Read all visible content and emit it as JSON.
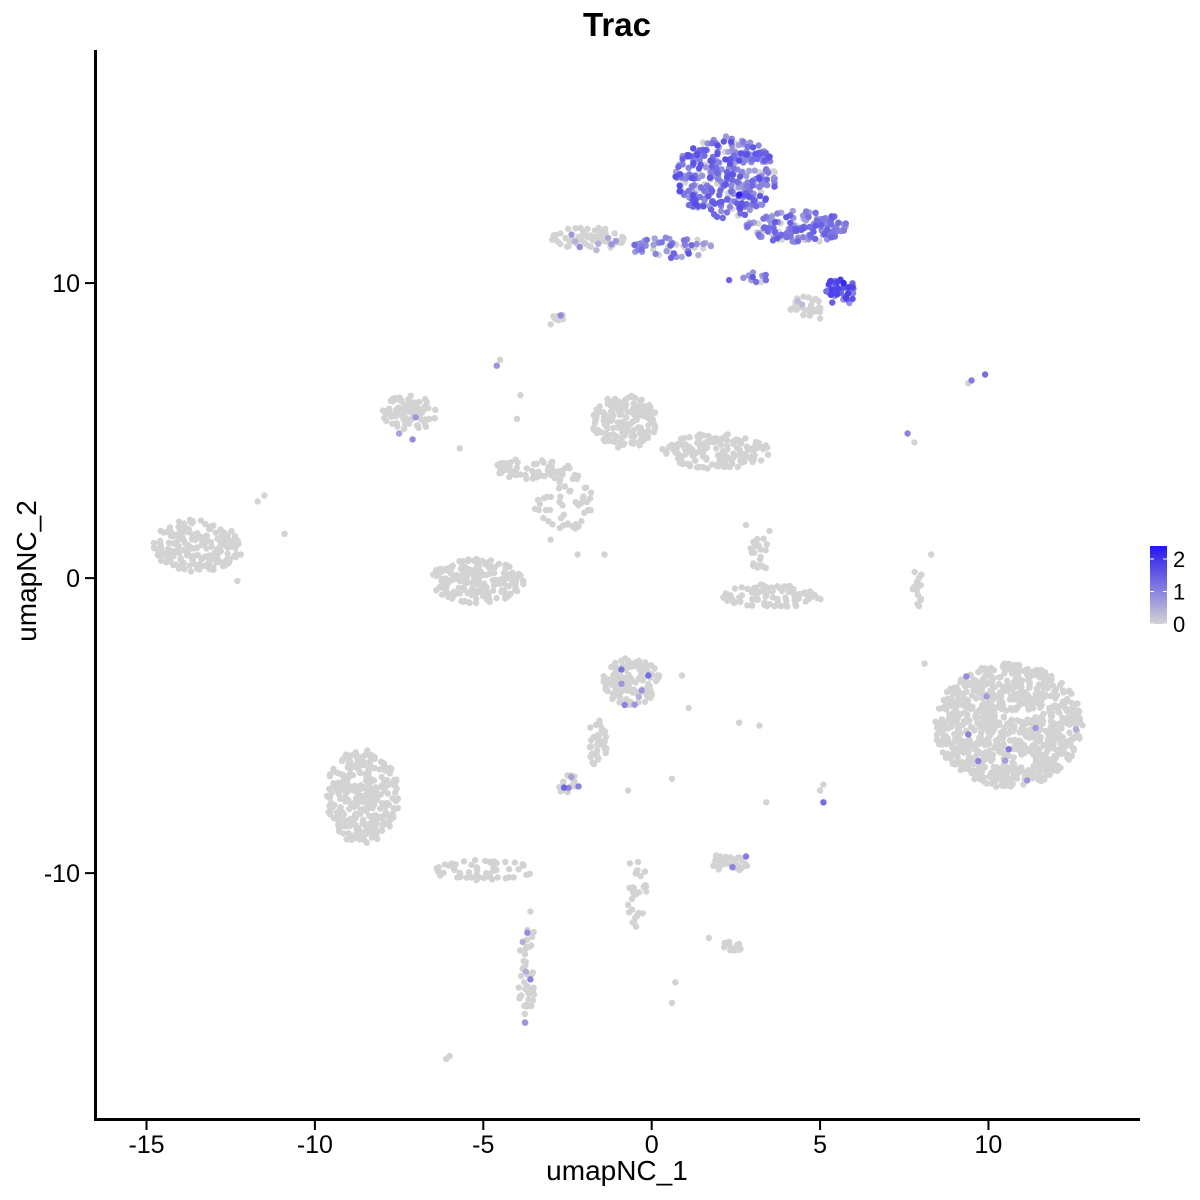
{
  "chart_data": {
    "type": "scatter",
    "title": "Trac",
    "xlabel": "umapNC_1",
    "ylabel": "umapNC_2",
    "xlim": [
      -16.5,
      14.5
    ],
    "ylim": [
      -18.3,
      17.9
    ],
    "x_ticks": [
      -15,
      -10,
      -5,
      0,
      5,
      10
    ],
    "x_tick_labels": [
      "-15",
      "-10",
      "-5",
      "0",
      "5",
      "10"
    ],
    "y_ticks": [
      -10,
      0,
      10
    ],
    "y_tick_labels": [
      "-10",
      "0",
      "10"
    ],
    "grid": false,
    "legend": {
      "placement": "right",
      "type": "colorbar",
      "range": [
        0,
        2.4
      ],
      "ticks": [
        0,
        1,
        2
      ],
      "tick_labels": [
        "0",
        "1",
        "2"
      ],
      "color_low": "#d3d3d3",
      "color_high": "#2416f0"
    },
    "clusters": [
      {
        "id": "tcell-top",
        "cx": 2.2,
        "cy": 13.6,
        "rx": 1.5,
        "ry": 1.4,
        "n": 320,
        "expr_mean": 1.15,
        "expr_spread": 0.55,
        "expr_frac": 0.9
      },
      {
        "id": "tcell-right-arm",
        "cx": 4.3,
        "cy": 11.9,
        "rx": 1.5,
        "ry": 0.55,
        "n": 140,
        "expr_mean": 1.05,
        "expr_spread": 0.5,
        "expr_frac": 0.8
      },
      {
        "id": "tcell-lower-right",
        "cx": 5.6,
        "cy": 9.7,
        "rx": 0.5,
        "ry": 0.45,
        "n": 45,
        "expr_mean": 1.3,
        "expr_spread": 0.6,
        "expr_frac": 0.85
      },
      {
        "id": "tcell-left-arm",
        "cx": 0.6,
        "cy": 11.2,
        "rx": 1.2,
        "ry": 0.35,
        "n": 55,
        "expr_mean": 0.95,
        "expr_spread": 0.5,
        "expr_frac": 0.6
      },
      {
        "id": "tcell-small-spur",
        "cx": 3.1,
        "cy": 10.2,
        "rx": 0.4,
        "ry": 0.25,
        "n": 12,
        "expr_mean": 1.0,
        "expr_spread": 0.4,
        "expr_frac": 0.7
      },
      {
        "id": "tcell-grey-tail",
        "cx": 4.6,
        "cy": 9.2,
        "rx": 0.5,
        "ry": 0.35,
        "n": 30,
        "expr_mean": 0.4,
        "expr_spread": 0.3,
        "expr_frac": 0.15
      },
      {
        "id": "upper-left-cloud",
        "cx": -1.9,
        "cy": 11.5,
        "rx": 1.1,
        "ry": 0.4,
        "n": 70,
        "expr_mean": 0.6,
        "expr_spread": 0.3,
        "expr_frac": 0.06
      },
      {
        "id": "upper-small-1",
        "cx": -2.8,
        "cy": 8.8,
        "rx": 0.25,
        "ry": 0.15,
        "n": 10,
        "expr_mean": 0.5,
        "expr_spread": 0.2,
        "expr_frac": 0.1
      },
      {
        "id": "left-mid-top",
        "cx": -7.2,
        "cy": 5.6,
        "rx": 0.8,
        "ry": 0.6,
        "n": 90,
        "expr_mean": 0.6,
        "expr_spread": 0.3,
        "expr_frac": 0.02
      },
      {
        "id": "mid-top-blob",
        "cx": -0.8,
        "cy": 5.3,
        "rx": 1.0,
        "ry": 0.9,
        "n": 170,
        "expr_mean": 0.5,
        "expr_spread": 0.3,
        "expr_frac": 0.0
      },
      {
        "id": "mid-right-blob",
        "cx": 1.9,
        "cy": 4.3,
        "rx": 1.6,
        "ry": 0.6,
        "n": 150,
        "expr_mean": 0.5,
        "expr_spread": 0.3,
        "expr_frac": 0.0
      },
      {
        "id": "mid-band",
        "cx": -3.6,
        "cy": 3.7,
        "rx": 1.2,
        "ry": 0.35,
        "n": 60,
        "expr_mean": 0.5,
        "expr_spread": 0.3,
        "expr_frac": 0.0
      },
      {
        "id": "mid-scatter",
        "cx": -2.6,
        "cy": 2.6,
        "rx": 0.9,
        "ry": 1.0,
        "n": 55,
        "expr_mean": 0.5,
        "expr_spread": 0.3,
        "expr_frac": 0.0
      },
      {
        "id": "far-left-blob",
        "cx": -13.5,
        "cy": 1.1,
        "rx": 1.3,
        "ry": 0.9,
        "n": 200,
        "expr_mean": 0.5,
        "expr_spread": 0.3,
        "expr_frac": 0.0
      },
      {
        "id": "cup-blob",
        "cx": -5.2,
        "cy": -0.1,
        "rx": 1.4,
        "ry": 0.75,
        "n": 190,
        "expr_mean": 0.5,
        "expr_spread": 0.3,
        "expr_frac": 0.0
      },
      {
        "id": "mid-right-arc",
        "cx": 3.6,
        "cy": -0.6,
        "rx": 1.5,
        "ry": 0.4,
        "n": 85,
        "expr_mean": 0.5,
        "expr_spread": 0.3,
        "expr_frac": 0.0
      },
      {
        "id": "mid-right-column",
        "cx": 3.2,
        "cy": 0.8,
        "rx": 0.3,
        "ry": 0.6,
        "n": 22,
        "expr_mean": 0.5,
        "expr_spread": 0.3,
        "expr_frac": 0.0
      },
      {
        "id": "right-big-blob",
        "cx": 10.6,
        "cy": -5.0,
        "rx": 2.2,
        "ry": 2.1,
        "n": 900,
        "expr_mean": 0.6,
        "expr_spread": 0.3,
        "expr_frac": 0.004
      },
      {
        "id": "center-lower-blob",
        "cx": -0.6,
        "cy": -3.5,
        "rx": 0.85,
        "ry": 0.8,
        "n": 140,
        "expr_mean": 0.7,
        "expr_spread": 0.3,
        "expr_frac": 0.03
      },
      {
        "id": "center-lower-tail",
        "cx": -1.6,
        "cy": -5.6,
        "rx": 0.3,
        "ry": 0.8,
        "n": 35,
        "expr_mean": 0.5,
        "expr_spread": 0.3,
        "expr_frac": 0.0
      },
      {
        "id": "bottom-left-head",
        "cx": -8.6,
        "cy": -7.4,
        "rx": 1.1,
        "ry": 1.6,
        "n": 300,
        "expr_mean": 0.5,
        "expr_spread": 0.3,
        "expr_frac": 0.0
      },
      {
        "id": "bottom-left-tail",
        "cx": -5.0,
        "cy": -9.9,
        "rx": 1.5,
        "ry": 0.35,
        "n": 60,
        "expr_mean": 0.5,
        "expr_spread": 0.3,
        "expr_frac": 0.0
      },
      {
        "id": "bottom-left-stream",
        "cx": -3.7,
        "cy": -13.5,
        "rx": 0.25,
        "ry": 1.7,
        "n": 45,
        "expr_mean": 0.6,
        "expr_spread": 0.3,
        "expr_frac": 0.04
      },
      {
        "id": "small-lower-1",
        "cx": -2.5,
        "cy": -7.0,
        "rx": 0.35,
        "ry": 0.35,
        "n": 25,
        "expr_mean": 0.9,
        "expr_spread": 0.3,
        "expr_frac": 0.08
      },
      {
        "id": "lower-center-stream",
        "cx": -0.5,
        "cy": -10.6,
        "rx": 0.35,
        "ry": 1.3,
        "n": 30,
        "expr_mean": 0.5,
        "expr_spread": 0.3,
        "expr_frac": 0.0
      },
      {
        "id": "lower-small-2",
        "cx": 2.3,
        "cy": -9.6,
        "rx": 0.6,
        "ry": 0.35,
        "n": 35,
        "expr_mean": 0.8,
        "expr_spread": 0.3,
        "expr_frac": 0.06
      },
      {
        "id": "lower-small-3",
        "cx": 2.3,
        "cy": -12.5,
        "rx": 0.4,
        "ry": 0.2,
        "n": 14,
        "expr_mean": 0.5,
        "expr_spread": 0.3,
        "expr_frac": 0.0
      },
      {
        "id": "right-column",
        "cx": 7.9,
        "cy": -0.3,
        "rx": 0.15,
        "ry": 0.7,
        "n": 15,
        "expr_mean": 0.5,
        "expr_spread": 0.3,
        "expr_frac": 0.0
      }
    ],
    "isolated_points": [
      {
        "x": -4.6,
        "y": 7.2,
        "v": 0.8
      },
      {
        "x": -4.5,
        "y": 7.4,
        "v": 0.0
      },
      {
        "x": -7.5,
        "y": 4.9,
        "v": 0.6
      },
      {
        "x": -7.1,
        "y": 4.7,
        "v": 0.9
      },
      {
        "x": -5.7,
        "y": 4.4,
        "v": 0.0
      },
      {
        "x": -4.0,
        "y": 5.4,
        "v": 0.0
      },
      {
        "x": -3.9,
        "y": 6.2,
        "v": 0.0
      },
      {
        "x": -3.0,
        "y": 1.3,
        "v": 0.0
      },
      {
        "x": -1.4,
        "y": 0.8,
        "v": 0.0
      },
      {
        "x": -2.2,
        "y": 0.8,
        "v": 0.0
      },
      {
        "x": 2.8,
        "y": 1.8,
        "v": 0.0
      },
      {
        "x": 3.5,
        "y": 1.6,
        "v": 0.0
      },
      {
        "x": -11.5,
        "y": 2.8,
        "v": 0.0
      },
      {
        "x": -11.7,
        "y": 2.6,
        "v": 0.0
      },
      {
        "x": -10.9,
        "y": 1.5,
        "v": 0.0
      },
      {
        "x": -12.8,
        "y": 0.9,
        "v": 0.0
      },
      {
        "x": -12.3,
        "y": -0.1,
        "v": 0.0
      },
      {
        "x": -12.2,
        "y": 0.8,
        "v": 0.0
      },
      {
        "x": 7.6,
        "y": 4.9,
        "v": 1.0
      },
      {
        "x": 7.8,
        "y": 4.6,
        "v": 0.0
      },
      {
        "x": 9.5,
        "y": 6.7,
        "v": 1.1
      },
      {
        "x": 9.9,
        "y": 6.9,
        "v": 1.3
      },
      {
        "x": 9.4,
        "y": 6.6,
        "v": 0.0
      },
      {
        "x": 8.3,
        "y": 0.8,
        "v": 0.0
      },
      {
        "x": 8.1,
        "y": -2.9,
        "v": 0.0
      },
      {
        "x": 9.4,
        "y": -5.3,
        "v": 1.0
      },
      {
        "x": 9.7,
        "y": -6.2,
        "v": 1.0
      },
      {
        "x": 10.6,
        "y": -5.8,
        "v": 1.1
      },
      {
        "x": 2.6,
        "y": -4.9,
        "v": 0.0
      },
      {
        "x": 3.2,
        "y": -5.0,
        "v": 0.0
      },
      {
        "x": 5.1,
        "y": -7.6,
        "v": 1.3
      },
      {
        "x": 5.0,
        "y": -7.2,
        "v": 0.0
      },
      {
        "x": 5.1,
        "y": -7.0,
        "v": 0.0
      },
      {
        "x": 3.4,
        "y": -7.6,
        "v": 0.0
      },
      {
        "x": -0.7,
        "y": -7.2,
        "v": 0.0
      },
      {
        "x": 0.6,
        "y": -6.8,
        "v": 0.0
      },
      {
        "x": 0.7,
        "y": -13.7,
        "v": 0.0
      },
      {
        "x": 0.6,
        "y": -14.4,
        "v": 0.0
      },
      {
        "x": -6.1,
        "y": -16.3,
        "v": 0.0
      },
      {
        "x": -6.0,
        "y": -16.2,
        "v": 0.0
      },
      {
        "x": -3.6,
        "y": -11.3,
        "v": 0.0
      },
      {
        "x": -3.5,
        "y": -12.0,
        "v": 0.0
      },
      {
        "x": 1.7,
        "y": -12.2,
        "v": 0.0
      },
      {
        "x": -2.7,
        "y": 8.9,
        "v": 0.9
      },
      {
        "x": -3.0,
        "y": 8.6,
        "v": 0.0
      },
      {
        "x": 5.0,
        "y": 8.8,
        "v": 0.0
      },
      {
        "x": 0.9,
        "y": -3.3,
        "v": 0.0
      },
      {
        "x": 1.1,
        "y": -4.4,
        "v": 0.0
      },
      {
        "x": -0.9,
        "y": -3.1,
        "v": 1.2
      },
      {
        "x": -0.1,
        "y": -3.3,
        "v": 1.3
      },
      {
        "x": -0.8,
        "y": -4.3,
        "v": 1.0
      },
      {
        "x": -2.6,
        "y": -7.1,
        "v": 1.4
      },
      {
        "x": -3.6,
        "y": -13.6,
        "v": 1.0
      },
      {
        "x": 2.4,
        "y": -9.8,
        "v": 1.0
      },
      {
        "x": 2.3,
        "y": 10.1,
        "v": 1.4
      },
      {
        "x": 3.0,
        "y": 10.2,
        "v": 1.5
      },
      {
        "x": 2.6,
        "y": 13.0,
        "v": 2.3
      },
      {
        "x": 5.7,
        "y": 10.0,
        "v": 2.2
      },
      {
        "x": 1.1,
        "y": 11.0,
        "v": 1.6
      }
    ]
  }
}
